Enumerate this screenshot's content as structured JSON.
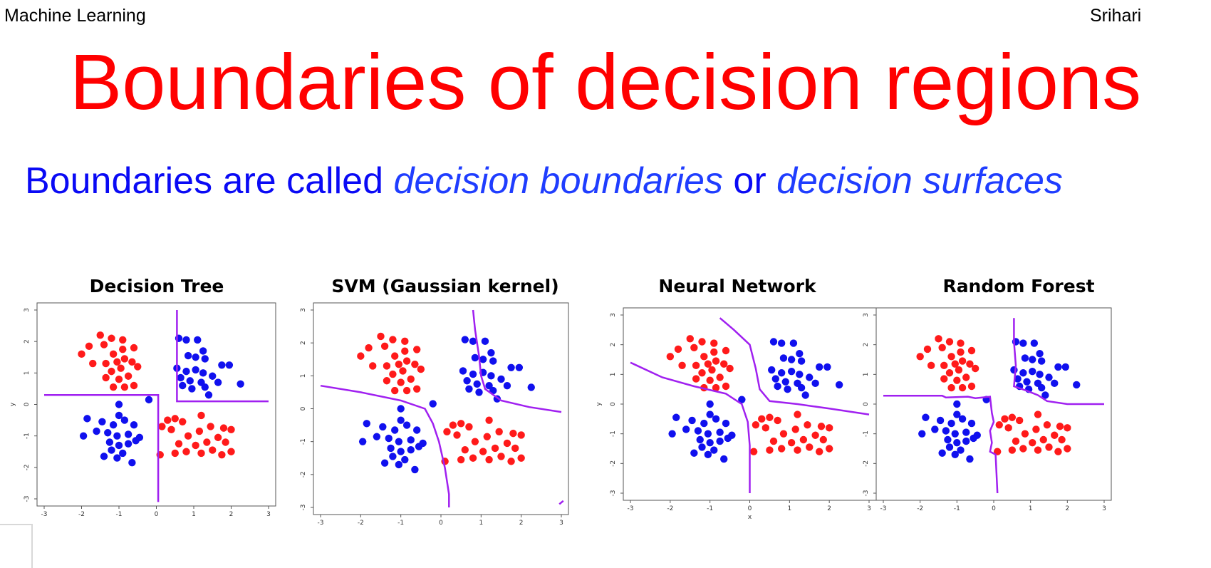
{
  "header": {
    "left": "Machine Learning",
    "right": "Srihari"
  },
  "title": "Boundaries of decision regions",
  "subtitle": {
    "part1": "Boundaries are called ",
    "term1": "decision boundaries",
    "part2": " or ",
    "term2": "decision surfaces"
  },
  "colors": {
    "red_class": "#ff1a1a",
    "blue_class": "#1010ee",
    "boundary": "#a020f0",
    "title": "#ff0000",
    "subtitle": "#0a0af5"
  },
  "chart_data": [
    {
      "type": "scatter",
      "title": "Decision Tree",
      "xlim": [
        -3,
        3
      ],
      "ylim": [
        -3,
        3
      ],
      "xticks": [
        "-3",
        "-2",
        "-1",
        "0",
        "1",
        "2",
        "3"
      ],
      "yticks": [
        "-3",
        "-2",
        "-1",
        "0",
        "1",
        "2",
        "3"
      ],
      "ylabel": "y",
      "xlabel": "",
      "series": [
        {
          "name": "red-upper-left",
          "color": "red",
          "points": [
            [
              -1.5,
              2.2
            ],
            [
              -1.2,
              2.1
            ],
            [
              -0.9,
              2.05
            ],
            [
              -2.0,
              1.6
            ],
            [
              -1.8,
              1.85
            ],
            [
              -1.4,
              1.9
            ],
            [
              -0.6,
              1.8
            ],
            [
              -0.9,
              1.75
            ],
            [
              -1.15,
              1.6
            ],
            [
              -0.85,
              1.45
            ],
            [
              -1.7,
              1.3
            ],
            [
              -1.35,
              1.3
            ],
            [
              -1.05,
              1.35
            ],
            [
              -0.65,
              1.35
            ],
            [
              -1.2,
              1.05
            ],
            [
              -0.95,
              1.15
            ],
            [
              -0.5,
              1.2
            ],
            [
              -1.35,
              0.85
            ],
            [
              -1.0,
              0.8
            ],
            [
              -0.75,
              0.9
            ],
            [
              -1.15,
              0.55
            ],
            [
              -0.85,
              0.55
            ],
            [
              -0.6,
              0.6
            ]
          ]
        },
        {
          "name": "red-lower-right",
          "color": "red",
          "points": [
            [
              0.3,
              -0.5
            ],
            [
              0.5,
              -0.45
            ],
            [
              0.7,
              -0.55
            ],
            [
              1.2,
              -0.35
            ],
            [
              0.15,
              -0.7
            ],
            [
              0.4,
              -0.8
            ],
            [
              0.85,
              -1.0
            ],
            [
              1.15,
              -0.85
            ],
            [
              1.45,
              -0.7
            ],
            [
              1.8,
              -0.75
            ],
            [
              2.0,
              -0.8
            ],
            [
              0.6,
              -1.25
            ],
            [
              1.05,
              -1.3
            ],
            [
              1.35,
              -1.2
            ],
            [
              1.65,
              -1.05
            ],
            [
              1.85,
              -1.2
            ],
            [
              0.1,
              -1.6
            ],
            [
              0.5,
              -1.55
            ],
            [
              0.8,
              -1.5
            ],
            [
              1.2,
              -1.55
            ],
            [
              1.5,
              -1.45
            ],
            [
              1.75,
              -1.6
            ],
            [
              2.0,
              -1.5
            ]
          ]
        },
        {
          "name": "blue-upper-right",
          "color": "blue",
          "points": [
            [
              0.6,
              2.1
            ],
            [
              0.8,
              2.05
            ],
            [
              1.1,
              2.05
            ],
            [
              1.25,
              1.7
            ],
            [
              1.05,
              1.5
            ],
            [
              0.85,
              1.55
            ],
            [
              1.3,
              1.45
            ],
            [
              1.75,
              1.25
            ],
            [
              1.95,
              1.25
            ],
            [
              0.55,
              1.15
            ],
            [
              0.8,
              1.05
            ],
            [
              1.05,
              1.1
            ],
            [
              1.25,
              1.0
            ],
            [
              1.5,
              0.9
            ],
            [
              0.65,
              0.85
            ],
            [
              0.9,
              0.75
            ],
            [
              1.2,
              0.7
            ],
            [
              1.65,
              0.7
            ],
            [
              2.25,
              0.65
            ],
            [
              0.95,
              0.5
            ],
            [
              1.3,
              0.55
            ],
            [
              1.4,
              0.3
            ],
            [
              0.7,
              0.6
            ]
          ]
        },
        {
          "name": "blue-lower-left",
          "color": "blue",
          "points": [
            [
              -1.0,
              0.0
            ],
            [
              -0.2,
              0.15
            ],
            [
              -1.85,
              -0.45
            ],
            [
              -1.45,
              -0.55
            ],
            [
              -1.0,
              -0.35
            ],
            [
              -1.15,
              -0.65
            ],
            [
              -0.85,
              -0.5
            ],
            [
              -0.6,
              -0.65
            ],
            [
              -1.95,
              -1.0
            ],
            [
              -1.6,
              -0.85
            ],
            [
              -1.3,
              -0.9
            ],
            [
              -1.05,
              -1.0
            ],
            [
              -0.75,
              -0.95
            ],
            [
              -0.45,
              -1.05
            ],
            [
              -1.25,
              -1.2
            ],
            [
              -1.0,
              -1.3
            ],
            [
              -0.75,
              -1.25
            ],
            [
              -0.55,
              -1.15
            ],
            [
              -1.2,
              -1.45
            ],
            [
              -0.9,
              -1.55
            ],
            [
              -1.4,
              -1.65
            ],
            [
              -1.05,
              -1.7
            ],
            [
              -0.65,
              -1.85
            ]
          ]
        }
      ],
      "boundary": [
        [
          [
            -3,
            0.3
          ],
          [
            0.05,
            0.3
          ],
          [
            0.05,
            -3.1
          ]
        ],
        [
          [
            0.55,
            3.0
          ],
          [
            0.55,
            0.1
          ],
          [
            3.0,
            0.1
          ]
        ]
      ]
    },
    {
      "type": "scatter",
      "title": "SVM (Gaussian kernel)",
      "xlim": [
        -3,
        3
      ],
      "ylim": [
        -3,
        3
      ],
      "xticks": [
        "-3",
        "-2",
        "-1",
        "0",
        "1",
        "2",
        "3"
      ],
      "yticks": [
        "-3",
        "-2",
        "-1",
        "0",
        "1",
        "2",
        "3"
      ],
      "ylabel": "",
      "xlabel": "",
      "series": "same-as-plot-1",
      "boundary": [
        [
          [
            0.8,
            3.0
          ],
          [
            0.85,
            2.4
          ],
          [
            0.95,
            1.6
          ],
          [
            1.0,
            1.0
          ],
          [
            1.1,
            0.6
          ],
          [
            1.5,
            0.25
          ],
          [
            2.2,
            0.05
          ],
          [
            3.0,
            -0.1
          ]
        ],
        [
          [
            -3,
            0.7
          ],
          [
            -2.0,
            0.5
          ],
          [
            -1.0,
            0.25
          ],
          [
            -0.4,
            0.0
          ],
          [
            -0.2,
            -0.45
          ],
          [
            -0.05,
            -1.0
          ],
          [
            0.1,
            -1.8
          ],
          [
            0.2,
            -2.6
          ],
          [
            0.2,
            -3.0
          ]
        ],
        [
          [
            2.95,
            -2.9
          ],
          [
            3.05,
            -2.8
          ]
        ]
      ]
    },
    {
      "type": "scatter",
      "title": "Neural Network",
      "xlim": [
        -3,
        3
      ],
      "ylim": [
        -3,
        3
      ],
      "xticks": [
        "-3",
        "-2",
        "-1",
        "0",
        "1",
        "2",
        "3"
      ],
      "yticks": [
        "-3",
        "-2",
        "-1",
        "0",
        "1",
        "2",
        "3"
      ],
      "ylabel": "y",
      "xlabel": "x",
      "series": "same-as-plot-1",
      "boundary": [
        [
          [
            -3,
            1.4
          ],
          [
            -2.2,
            0.9
          ],
          [
            -1.4,
            0.6
          ],
          [
            -0.6,
            0.35
          ],
          [
            -0.2,
            0.0
          ],
          [
            -0.05,
            -0.6
          ],
          [
            0.0,
            -1.4
          ],
          [
            0.0,
            -3.0
          ]
        ],
        [
          [
            -0.75,
            2.9
          ],
          [
            -0.4,
            2.5
          ],
          [
            0.0,
            2.0
          ],
          [
            0.15,
            1.2
          ],
          [
            0.25,
            0.5
          ],
          [
            0.5,
            0.1
          ],
          [
            1.2,
            0.0
          ],
          [
            2.0,
            -0.15
          ],
          [
            3.0,
            -0.35
          ]
        ]
      ]
    },
    {
      "type": "scatter",
      "title": "Random Forest",
      "xlim": [
        -3,
        3
      ],
      "ylim": [
        -3,
        3
      ],
      "xticks": [
        "-3",
        "-2",
        "-1",
        "0",
        "1",
        "2",
        "3"
      ],
      "yticks": [
        "-3",
        "-2",
        "-1",
        "0",
        "1",
        "2",
        "3"
      ],
      "ylabel": "",
      "xlabel": "",
      "series": "same-as-plot-1",
      "boundary": [
        [
          [
            -3,
            0.28
          ],
          [
            -1.4,
            0.28
          ],
          [
            -1.3,
            0.22
          ],
          [
            -0.7,
            0.25
          ],
          [
            -0.5,
            0.2
          ],
          [
            -0.1,
            0.25
          ],
          [
            -0.05,
            -0.3
          ],
          [
            0.0,
            -0.6
          ],
          [
            -0.1,
            -0.9
          ],
          [
            -0.05,
            -1.3
          ],
          [
            -0.1,
            -1.6
          ],
          [
            0.05,
            -1.7
          ],
          [
            0.1,
            -3.0
          ]
        ],
        [
          [
            0.55,
            2.9
          ],
          [
            0.55,
            2.1
          ],
          [
            0.6,
            1.3
          ],
          [
            0.55,
            0.6
          ],
          [
            0.9,
            0.45
          ],
          [
            1.2,
            0.3
          ],
          [
            1.45,
            0.1
          ],
          [
            2.0,
            0.0
          ],
          [
            3.0,
            0.0
          ]
        ]
      ]
    }
  ]
}
